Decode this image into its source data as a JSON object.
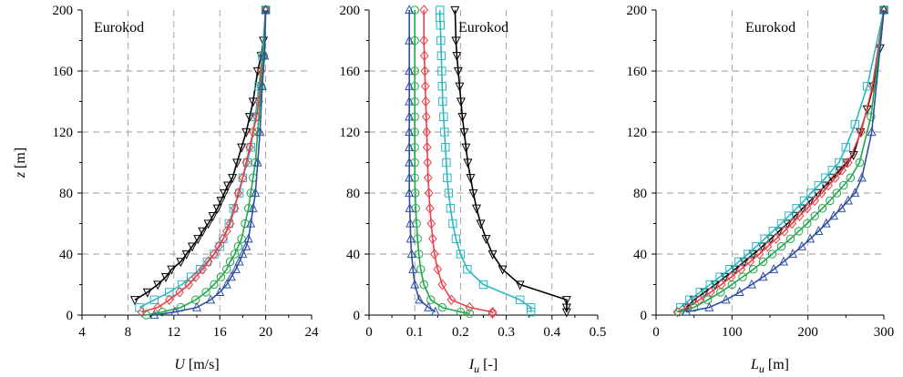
{
  "chart_data": [
    {
      "type": "line",
      "annotation": "Eurokod",
      "xlabel": {
        "var": "U",
        "sub": "",
        "unit": " [m/s]"
      },
      "ylabel": {
        "var": "z",
        "unit": " [m]"
      },
      "xlim": [
        4,
        24
      ],
      "ylim": [
        0,
        200
      ],
      "xticks": [
        4,
        8,
        12,
        16,
        20,
        24
      ],
      "yticks": [
        0,
        40,
        80,
        120,
        160,
        200
      ],
      "grid": true,
      "series": [
        {
          "color": "#000000",
          "marker": "triangle-down",
          "x": [
            8.6,
            9.7,
            10.6,
            11.3,
            11.8,
            12.6,
            13.1,
            13.6,
            14.1,
            14.5,
            15.0,
            15.4,
            15.8,
            16.1,
            16.4,
            16.7,
            17.1,
            17.5,
            17.9,
            18.3,
            18.6,
            18.9,
            19.3,
            19.6,
            19.8,
            20.0
          ],
          "y": [
            10,
            15,
            20,
            25,
            30,
            35,
            40,
            45,
            50,
            55,
            60,
            65,
            70,
            75,
            80,
            85,
            90,
            100,
            110,
            120,
            130,
            140,
            160,
            170,
            180,
            200
          ]
        },
        {
          "color": "#2ab7c2",
          "marker": "square",
          "x": [
            9.0,
            10.3,
            11.6,
            12.7,
            13.5,
            14.3,
            14.9,
            15.5,
            16.0,
            16.3,
            16.8,
            17.2,
            17.7,
            18.0,
            18.4,
            18.7,
            19.1,
            19.4,
            19.7,
            20.0
          ],
          "y": [
            5,
            10,
            15,
            20,
            25,
            30,
            35,
            40,
            45,
            50,
            60,
            70,
            80,
            90,
            100,
            110,
            130,
            150,
            170,
            200
          ]
        },
        {
          "color": "#e8414a",
          "marker": "diamond",
          "x": [
            9.2,
            10.6,
            11.6,
            12.5,
            13.3,
            13.9,
            14.5,
            15.0,
            15.5,
            15.9,
            16.3,
            16.6,
            16.9,
            17.3,
            17.6,
            18.0,
            18.3,
            18.6,
            18.9,
            19.2,
            19.4,
            19.6,
            19.8,
            20.0
          ],
          "y": [
            2,
            5,
            10,
            15,
            20,
            25,
            30,
            35,
            40,
            45,
            50,
            55,
            60,
            70,
            80,
            90,
            100,
            110,
            120,
            130,
            140,
            160,
            170,
            200
          ]
        },
        {
          "color": "#1fa84a",
          "marker": "circle",
          "x": [
            9.6,
            11.0,
            12.6,
            13.9,
            14.8,
            15.5,
            16.1,
            16.6,
            16.9,
            17.3,
            17.6,
            17.9,
            18.2,
            18.5,
            18.7,
            18.9,
            19.1,
            19.3,
            19.6,
            19.8,
            20.0
          ],
          "y": [
            0,
            2,
            5,
            10,
            15,
            20,
            25,
            30,
            35,
            40,
            45,
            50,
            60,
            70,
            80,
            90,
            100,
            120,
            150,
            170,
            200
          ]
        },
        {
          "color": "#2f4fa2",
          "marker": "triangle-up",
          "x": [
            10.3,
            12.1,
            14.0,
            15.2,
            16.0,
            16.6,
            17.0,
            17.4,
            17.7,
            18.0,
            18.3,
            18.5,
            18.7,
            18.9,
            19.1,
            19.3,
            19.5,
            19.7,
            19.9,
            20.0
          ],
          "y": [
            0,
            2,
            5,
            10,
            15,
            20,
            25,
            30,
            35,
            40,
            45,
            50,
            60,
            70,
            80,
            100,
            120,
            150,
            170,
            200
          ]
        }
      ]
    },
    {
      "type": "line",
      "annotation": "Eurokod",
      "xlabel": {
        "var": "I",
        "sub": "u",
        "unit": " [-]"
      },
      "ylabel": {
        "var": "",
        "unit": ""
      },
      "xlim": [
        0,
        0.5
      ],
      "ylim": [
        0,
        200
      ],
      "xticks": [
        0,
        0.1,
        0.2,
        0.3,
        0.4,
        0.5
      ],
      "yticks": [
        0,
        40,
        80,
        120,
        160,
        200
      ],
      "grid": true,
      "series": [
        {
          "color": "#000000",
          "marker": "triangle-down",
          "x": [
            0.432,
            0.432,
            0.432,
            0.33,
            0.292,
            0.27,
            0.256,
            0.244,
            0.235,
            0.228,
            0.222,
            0.216,
            0.212,
            0.208,
            0.204,
            0.201,
            0.198,
            0.195,
            0.192,
            0.19,
            0.188
          ],
          "y": [
            2,
            5,
            10,
            20,
            30,
            40,
            50,
            60,
            70,
            80,
            90,
            100,
            110,
            120,
            130,
            140,
            150,
            160,
            170,
            180,
            200
          ]
        },
        {
          "color": "#2ab7c2",
          "marker": "square",
          "x": [
            0.354,
            0.354,
            0.33,
            0.25,
            0.215,
            0.2,
            0.19,
            0.183,
            0.178,
            0.174,
            0.171,
            0.169,
            0.167,
            0.165,
            0.163,
            0.161,
            0.16,
            0.159,
            0.158,
            0.157,
            0.156,
            0.155,
            0.155
          ],
          "y": [
            2,
            5,
            10,
            20,
            30,
            40,
            50,
            60,
            70,
            80,
            90,
            100,
            110,
            120,
            130,
            140,
            150,
            160,
            170,
            180,
            190,
            195,
            200
          ]
        },
        {
          "color": "#e8414a",
          "marker": "diamond",
          "x": [
            0.27,
            0.27,
            0.22,
            0.18,
            0.16,
            0.15,
            0.143,
            0.139,
            0.136,
            0.133,
            0.131,
            0.129,
            0.128,
            0.127,
            0.126,
            0.125,
            0.124,
            0.123,
            0.122,
            0.121,
            0.12,
            0.12
          ],
          "y": [
            1,
            2,
            5,
            10,
            20,
            30,
            40,
            50,
            60,
            70,
            80,
            90,
            100,
            110,
            120,
            130,
            140,
            150,
            160,
            170,
            180,
            200
          ]
        },
        {
          "color": "#1fa84a",
          "marker": "circle",
          "x": [
            0.22,
            0.2,
            0.16,
            0.135,
            0.12,
            0.113,
            0.109,
            0.106,
            0.104,
            0.102,
            0.101,
            0.1,
            0.1,
            0.1,
            0.1,
            0.1,
            0.1,
            0.1,
            0.1,
            0.1,
            0.1
          ],
          "y": [
            1,
            2,
            5,
            10,
            20,
            30,
            40,
            50,
            60,
            70,
            80,
            90,
            100,
            110,
            120,
            130,
            140,
            150,
            160,
            180,
            200
          ]
        },
        {
          "color": "#2f4fa2",
          "marker": "triangle-up",
          "x": [
            0.145,
            0.13,
            0.11,
            0.1,
            0.096,
            0.093,
            0.091,
            0.09,
            0.089,
            0.088,
            0.088,
            0.088,
            0.088,
            0.088,
            0.088,
            0.088,
            0.088,
            0.088,
            0.088,
            0.088
          ],
          "y": [
            2,
            5,
            10,
            20,
            30,
            40,
            50,
            60,
            70,
            80,
            90,
            100,
            110,
            120,
            130,
            140,
            150,
            160,
            180,
            200
          ]
        }
      ]
    },
    {
      "type": "line",
      "annotation": "Eurokod",
      "xlabel": {
        "var": "L",
        "sub": "u",
        "unit": " [m]"
      },
      "ylabel": {
        "var": "",
        "unit": ""
      },
      "xlim": [
        0,
        300
      ],
      "ylim": [
        0,
        200
      ],
      "xticks": [
        0,
        100,
        200,
        300
      ],
      "yticks": [
        0,
        40,
        80,
        120,
        160,
        200
      ],
      "grid": true,
      "series": [
        {
          "color": "#000000",
          "marker": "triangle-down",
          "x": [
            40,
            50,
            64,
            78,
            91,
            104,
            116,
            128,
            140,
            151,
            162,
            173,
            183,
            193,
            203,
            213,
            223,
            232,
            242,
            251,
            260,
            269,
            278,
            286,
            295,
            300
          ],
          "y": [
            5,
            10,
            15,
            20,
            25,
            30,
            35,
            40,
            45,
            50,
            55,
            60,
            65,
            70,
            75,
            80,
            85,
            90,
            95,
            100,
            105,
            120,
            135,
            150,
            175,
            200
          ]
        },
        {
          "color": "#2ab7c2",
          "marker": "square",
          "x": [
            32,
            44,
            58,
            71,
            84,
            97,
            109,
            121,
            132,
            143,
            154,
            165,
            175,
            185,
            195,
            204,
            214,
            223,
            232,
            241,
            250,
            262,
            278,
            300
          ],
          "y": [
            5,
            10,
            15,
            20,
            25,
            30,
            35,
            40,
            45,
            50,
            55,
            60,
            65,
            70,
            75,
            80,
            85,
            90,
            95,
            100,
            110,
            125,
            150,
            200
          ]
        },
        {
          "color": "#e8414a",
          "marker": "diamond",
          "x": [
            28,
            42,
            57,
            72,
            86,
            99,
            112,
            124,
            136,
            147,
            158,
            169,
            179,
            189,
            199,
            209,
            218,
            227,
            236,
            245,
            253,
            270,
            285,
            300
          ],
          "y": [
            2,
            5,
            10,
            15,
            20,
            25,
            30,
            35,
            40,
            45,
            50,
            55,
            60,
            65,
            70,
            75,
            80,
            85,
            90,
            95,
            100,
            120,
            150,
            200
          ]
        },
        {
          "color": "#1fa84a",
          "marker": "circle",
          "x": [
            30,
            50,
            68,
            85,
            100,
            114,
            128,
            141,
            153,
            165,
            177,
            188,
            199,
            209,
            219,
            229,
            238,
            247,
            256,
            268,
            283,
            300
          ],
          "y": [
            2,
            5,
            10,
            15,
            20,
            25,
            30,
            35,
            40,
            45,
            50,
            55,
            60,
            65,
            70,
            75,
            80,
            85,
            90,
            100,
            130,
            200
          ]
        },
        {
          "color": "#2f4fa2",
          "marker": "triangle-up",
          "x": [
            40,
            70,
            92,
            110,
            126,
            141,
            155,
            168,
            180,
            192,
            203,
            214,
            224,
            234,
            244,
            253,
            262,
            271,
            284,
            300
          ],
          "y": [
            2,
            5,
            10,
            15,
            20,
            25,
            30,
            35,
            40,
            45,
            50,
            55,
            60,
            65,
            70,
            75,
            80,
            90,
            120,
            200
          ]
        }
      ]
    }
  ]
}
